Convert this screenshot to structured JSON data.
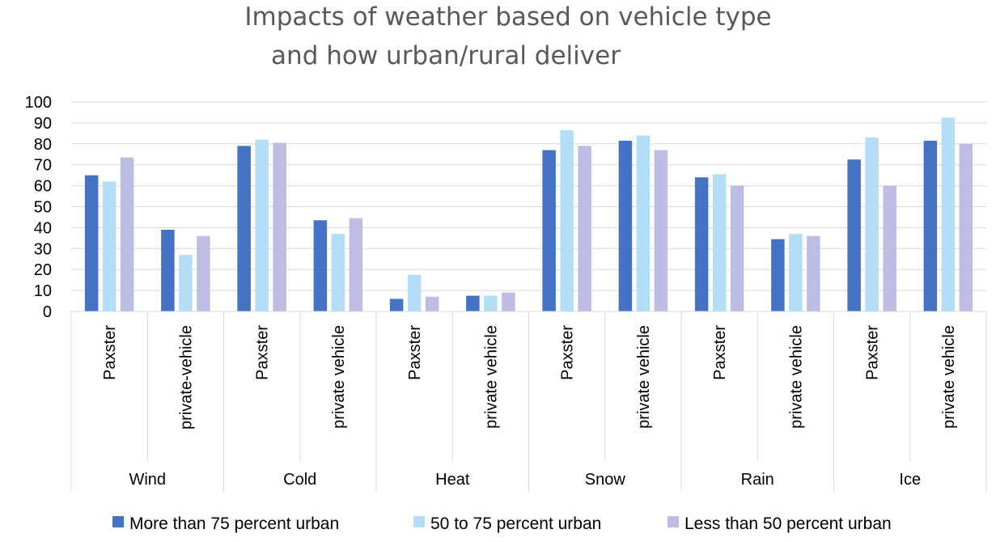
{
  "chart_data": {
    "type": "bar",
    "title_lines": [
      "Impacts of weather based on vehicle type",
      "and how urban/rural deliver"
    ],
    "ylim": [
      0,
      100
    ],
    "y_ticks": [
      0,
      10,
      20,
      30,
      40,
      50,
      60,
      70,
      80,
      90,
      100
    ],
    "grid": true,
    "legend_position": "bottom",
    "groups": [
      {
        "name": "Wind",
        "sub": [
          "Paxster",
          "private-vehicle"
        ]
      },
      {
        "name": "Cold",
        "sub": [
          "Paxster",
          "private vehicle"
        ]
      },
      {
        "name": "Heat",
        "sub": [
          "Paxster",
          "private vehicle"
        ]
      },
      {
        "name": "Snow",
        "sub": [
          "Paxster",
          "private vehicle"
        ]
      },
      {
        "name": "Rain",
        "sub": [
          "Paxster",
          "private vehicle"
        ]
      },
      {
        "name": "Ice",
        "sub": [
          "Paxster",
          "private vehicle"
        ]
      }
    ],
    "series": [
      {
        "name": "More than 75 percent urban",
        "color": "#4472C4",
        "values": [
          65,
          39,
          79,
          43.5,
          6,
          7.5,
          77,
          81.5,
          64,
          34.5,
          72.5,
          81.5
        ]
      },
      {
        "name": "50 to 75 percent urban",
        "color": "#B4DEF8",
        "values": [
          62,
          27,
          82,
          37,
          17.5,
          7.5,
          86.5,
          84,
          65.5,
          37,
          83,
          92.5
        ]
      },
      {
        "name": "Less than 50 percent urban",
        "color": "#BDBDE4",
        "values": [
          73.5,
          36,
          80.5,
          44.5,
          7,
          9,
          79,
          77,
          60,
          36,
          60,
          80
        ]
      }
    ]
  }
}
